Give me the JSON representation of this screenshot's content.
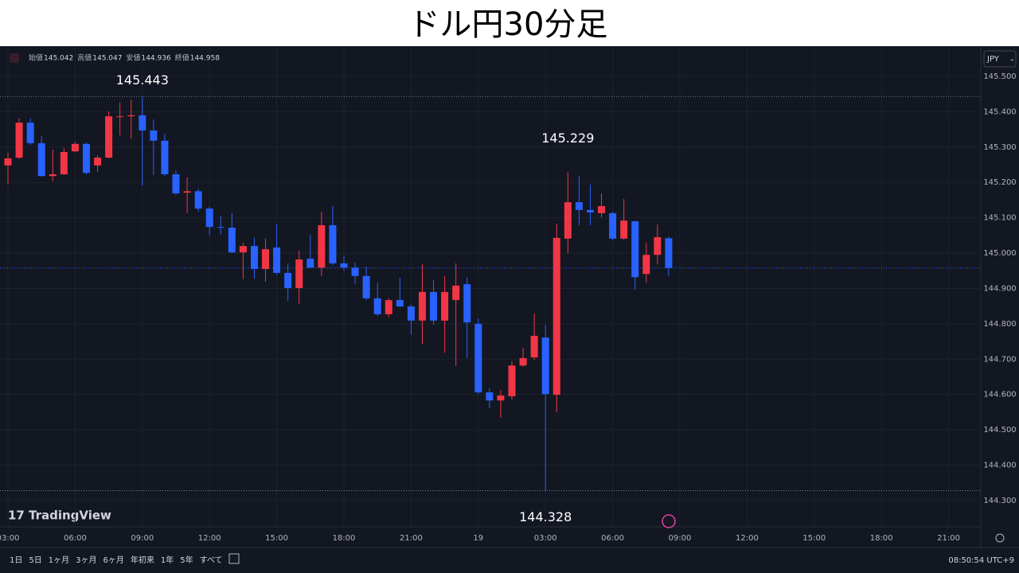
{
  "chart_data": {
    "type": "candlestick",
    "title": "ドル円30分足",
    "ohlc_labels": [
      "始値",
      "高値",
      "安値",
      "終値"
    ],
    "currency": "JPY",
    "brand": "TradingView",
    "clock": "08:50:54 UTC+9",
    "range_buttons": [
      "1日",
      "5日",
      "1ヶ月",
      "3ヶ月",
      "6ヶ月",
      "年初来",
      "1年",
      "5年",
      "すべて"
    ],
    "up_color": "#f23645",
    "down_color": "#2962ff",
    "grid": true,
    "ylim": [
      144.23,
      145.581
    ],
    "yticks": [
      {
        "value": 145.5,
        "label": "145.500"
      },
      {
        "value": 145.4,
        "label": "145.400"
      },
      {
        "value": 145.3,
        "label": "145.300"
      },
      {
        "value": 145.2,
        "label": "145.200"
      },
      {
        "value": 145.1,
        "label": "145.100"
      },
      {
        "value": 145.0,
        "label": "145.000"
      },
      {
        "value": 144.9,
        "label": "144.900"
      },
      {
        "value": 144.8,
        "label": "144.800"
      },
      {
        "value": 144.7,
        "label": "144.700"
      },
      {
        "value": 144.6,
        "label": "144.600"
      },
      {
        "value": 144.5,
        "label": "144.500"
      },
      {
        "value": 144.4,
        "label": "144.400"
      },
      {
        "value": 144.3,
        "label": "144.300"
      }
    ],
    "xticks": [
      "03:00",
      "06:00",
      "09:00",
      "12:00",
      "15:00",
      "18:00",
      "21:00",
      "19",
      "03:00",
      "06:00",
      "09:00",
      "12:00",
      "15:00",
      "18:00",
      "21:00"
    ],
    "open": [
      145.248,
      145.27,
      145.369,
      145.311,
      145.218,
      145.223,
      145.288,
      145.309,
      145.248,
      145.27,
      145.385,
      145.387,
      145.39,
      145.347,
      145.318,
      145.223,
      145.171,
      145.175,
      145.126,
      145.074,
      145.072,
      145.002,
      145.02,
      144.955,
      145.016,
      144.944,
      144.901,
      144.984,
      144.959,
      145.079,
      144.971,
      144.959,
      144.935,
      144.872,
      144.827,
      144.867,
      144.849,
      144.809,
      144.89,
      144.809,
      144.867,
      144.912,
      144.8,
      144.606,
      144.583,
      144.595,
      144.682,
      144.705,
      144.761,
      144.599,
      145.041,
      145.144,
      145.122,
      145.113,
      145.113,
      145.041,
      145.09,
      144.941,
      144.995,
      145.042
    ],
    "high": [
      145.284,
      145.381,
      145.381,
      145.331,
      145.293,
      145.297,
      145.315,
      145.313,
      145.277,
      145.401,
      145.426,
      145.434,
      145.443,
      145.378,
      145.338,
      145.234,
      145.214,
      145.182,
      145.131,
      145.106,
      145.113,
      145.029,
      145.043,
      145.041,
      145.081,
      144.971,
      145.007,
      145.052,
      145.117,
      145.133,
      144.993,
      144.973,
      144.962,
      144.917,
      144.872,
      144.93,
      144.854,
      144.968,
      144.923,
      144.935,
      144.971,
      144.932,
      144.815,
      144.617,
      144.613,
      144.694,
      144.732,
      144.829,
      144.797,
      145.083,
      145.229,
      145.218,
      145.194,
      145.169,
      145.117,
      145.153,
      145.092,
      145.029,
      145.081,
      145.047
    ],
    "low": [
      145.194,
      145.266,
      145.306,
      145.216,
      145.203,
      145.221,
      145.286,
      145.223,
      145.23,
      145.268,
      145.333,
      145.324,
      145.191,
      145.221,
      145.218,
      145.164,
      145.113,
      145.117,
      145.05,
      145.052,
      145.0,
      144.926,
      144.928,
      144.919,
      144.939,
      144.865,
      144.856,
      144.959,
      144.935,
      144.966,
      144.95,
      144.912,
      144.867,
      144.822,
      144.818,
      144.847,
      144.77,
      144.743,
      144.797,
      144.718,
      144.68,
      144.703,
      144.601,
      144.561,
      144.534,
      144.586,
      144.678,
      144.698,
      144.328,
      144.55,
      145.0,
      145.079,
      145.079,
      145.101,
      145.036,
      145.038,
      144.896,
      144.917,
      144.968,
      144.936
    ],
    "close": [
      145.268,
      145.369,
      145.311,
      145.218,
      145.223,
      145.286,
      145.309,
      145.227,
      145.27,
      145.387,
      145.387,
      145.39,
      145.347,
      145.318,
      145.223,
      145.169,
      145.175,
      145.126,
      145.074,
      145.072,
      145.002,
      145.02,
      144.955,
      145.011,
      144.944,
      144.901,
      144.982,
      144.959,
      145.079,
      144.971,
      144.959,
      144.935,
      144.872,
      144.827,
      144.867,
      144.849,
      144.809,
      144.89,
      144.809,
      144.89,
      144.908,
      144.804,
      144.606,
      144.583,
      144.597,
      144.682,
      144.703,
      144.766,
      144.601,
      145.043,
      145.144,
      145.122,
      145.115,
      145.133,
      145.041,
      145.092,
      144.932,
      144.995,
      145.045,
      144.958
    ]
  }
}
